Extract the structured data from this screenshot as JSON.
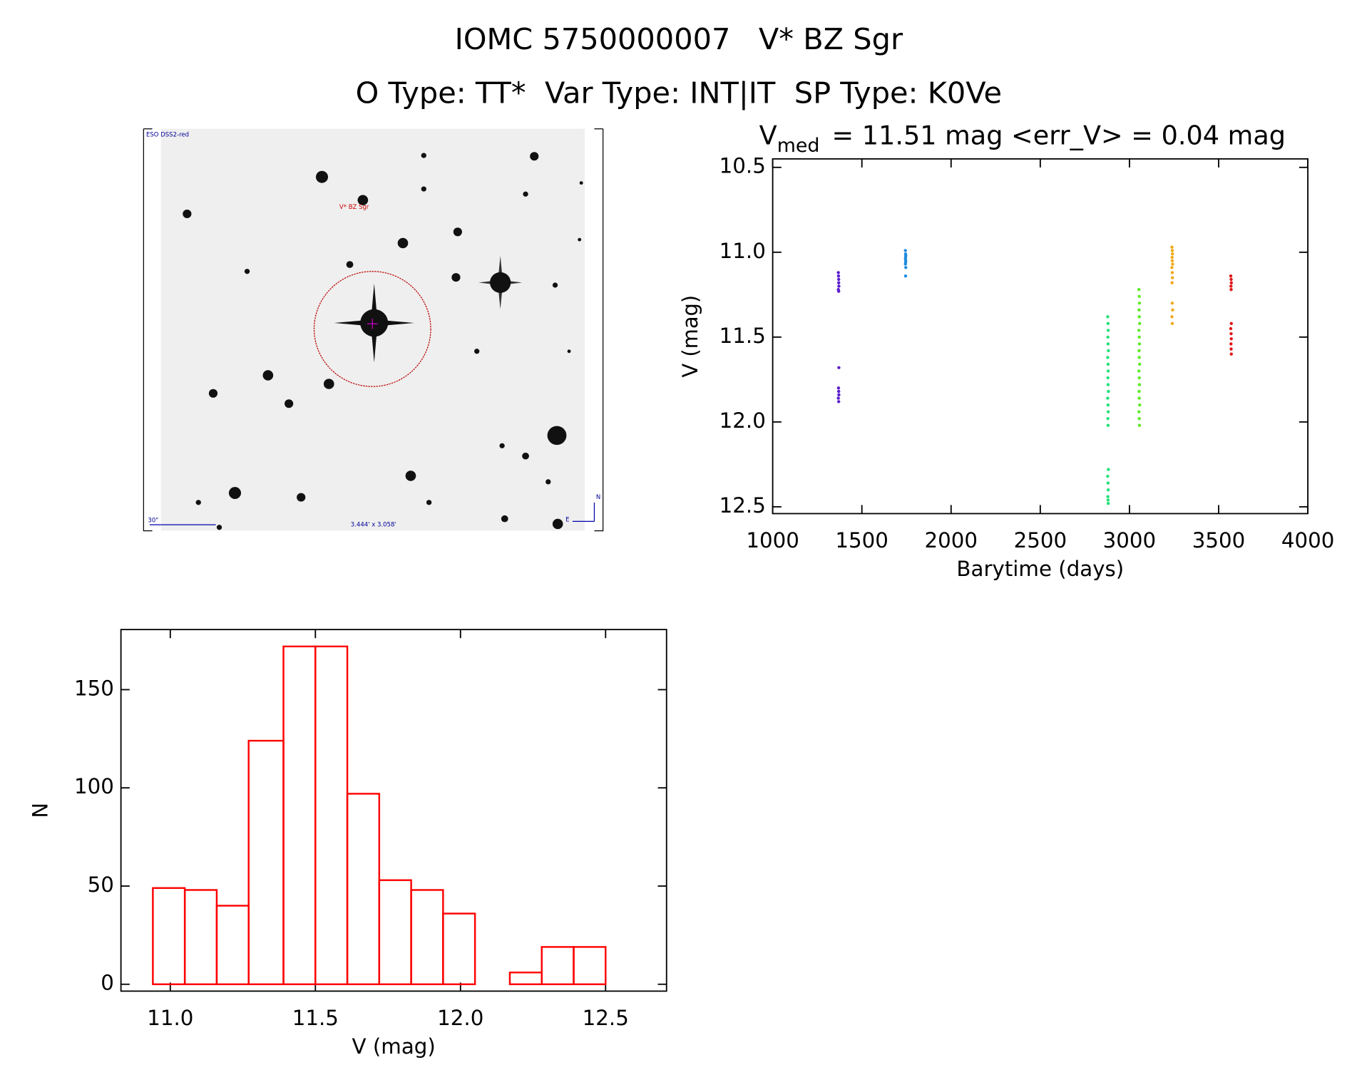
{
  "header": {
    "title": "IOMC 5750000007   V* BZ Sgr",
    "subtitle": "O Type: TT*  Var Type: INT|IT  SP Type: K0Ve"
  },
  "image": {
    "survey": "ESO DSS2-red",
    "target": "V* BZ Sgr",
    "scale": "30\"",
    "size": "3.444' x 3.058'",
    "north": "N",
    "east": "E"
  },
  "chart_data": [
    {
      "type": "scatter",
      "title": "V",
      "title_sub": "med",
      "title_rest": "= 11.51 mag <err_V> = 0.04 mag",
      "xlabel": "Barytime (days)",
      "ylabel": "V (mag)",
      "xlim": [
        1000,
        4000
      ],
      "xticks": [
        1000,
        1500,
        2000,
        2500,
        3000,
        3500,
        4000
      ],
      "ylim": [
        12.54,
        10.45
      ],
      "yticks": [
        10.5,
        {
          "value": 11,
          "label": "11.0"
        },
        11.5,
        {
          "value": 12,
          "label": "12.0"
        },
        12.5
      ],
      "series": [
        {
          "color": "#5a1ccc",
          "x": [
            1368,
            1369,
            1370,
            1370,
            1371,
            1368,
            1370,
            1371,
            1369,
            1370,
            1371,
            1368,
            1370
          ],
          "values": [
            11.12,
            11.14,
            11.16,
            11.18,
            11.2,
            11.22,
            11.23,
            11.68,
            11.8,
            11.82,
            11.84,
            11.86,
            11.88
          ]
        },
        {
          "color": "#1f8be0",
          "x": [
            1744,
            1745,
            1746,
            1745,
            1744,
            1746,
            1745,
            1744,
            1746,
            1745
          ],
          "values": [
            10.99,
            11.01,
            11.02,
            11.03,
            11.04,
            11.05,
            11.06,
            11.07,
            11.09,
            11.14
          ]
        },
        {
          "color": "#22e07a",
          "x": [
            2878,
            2880,
            2881,
            2879,
            2880,
            2882,
            2878,
            2880,
            2881,
            2879,
            2880,
            2882,
            2878,
            2880,
            2881,
            2879,
            2880,
            2882,
            2878,
            2880,
            2881,
            2879,
            2880,
            2881
          ],
          "values": [
            11.38,
            11.42,
            11.46,
            11.5,
            11.54,
            11.58,
            11.62,
            11.66,
            11.7,
            11.74,
            11.78,
            11.82,
            11.86,
            11.9,
            11.94,
            11.98,
            12.02,
            12.28,
            12.32,
            12.36,
            12.4,
            12.44,
            12.46,
            12.48
          ]
        },
        {
          "color": "#5cec22",
          "x": [
            3053,
            3055,
            3056,
            3054,
            3055,
            3057,
            3053,
            3055,
            3056,
            3054,
            3055,
            3057,
            3053,
            3055,
            3056,
            3054,
            3055,
            3057,
            3053,
            3055,
            3056
          ],
          "values": [
            11.22,
            11.26,
            11.3,
            11.34,
            11.38,
            11.42,
            11.46,
            11.5,
            11.54,
            11.58,
            11.62,
            11.66,
            11.7,
            11.74,
            11.78,
            11.82,
            11.86,
            11.9,
            11.94,
            11.98,
            12.02
          ]
        },
        {
          "color": "#f0a818",
          "x": [
            3238,
            3240,
            3241,
            3239,
            3240,
            3242,
            3238,
            3240,
            3241,
            3239,
            3240,
            3242,
            3238,
            3240
          ],
          "values": [
            10.97,
            10.99,
            11.01,
            11.03,
            11.05,
            11.07,
            11.09,
            11.12,
            11.15,
            11.18,
            11.3,
            11.34,
            11.38,
            11.42
          ]
        },
        {
          "color": "#e01414",
          "x": [
            3568,
            3570,
            3571,
            3569,
            3570,
            3571,
            3568,
            3570,
            3571,
            3569,
            3570,
            3571
          ],
          "values": [
            11.14,
            11.16,
            11.18,
            11.2,
            11.22,
            11.42,
            11.45,
            11.48,
            11.51,
            11.54,
            11.57,
            11.6
          ]
        }
      ]
    },
    {
      "type": "histogram",
      "xlabel": "V (mag)",
      "ylabel": "N",
      "color": "#ff0000",
      "bins": [
        10.94,
        11.05,
        11.16,
        11.27,
        11.39,
        11.5,
        11.61,
        11.72,
        11.83,
        11.94,
        12.05,
        12.17,
        12.28,
        12.39,
        12.5
      ],
      "values": [
        49,
        48,
        40,
        124,
        172,
        172,
        97,
        53,
        48,
        36,
        0,
        6,
        19,
        19
      ],
      "xlim": [
        10.83,
        12.71
      ],
      "xticks": [
        {
          "value": 11,
          "label": "11.0"
        },
        11.5,
        {
          "value": 12,
          "label": "12.0"
        },
        12.5
      ],
      "ylim": [
        -3.5,
        180.6
      ],
      "yticks": [
        0,
        50,
        100,
        150
      ]
    }
  ]
}
